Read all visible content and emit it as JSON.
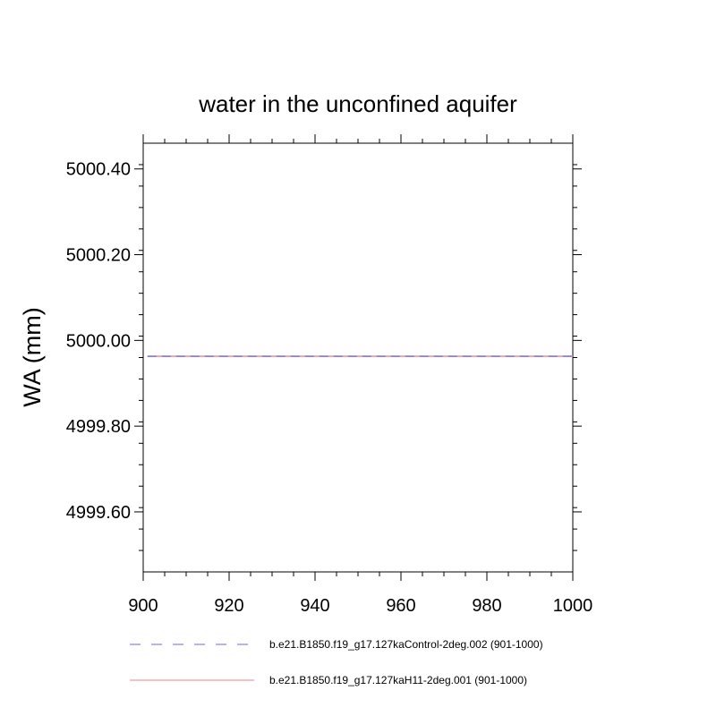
{
  "chart_data": {
    "type": "line",
    "title": "water in the unconfined aquifer",
    "xlabel": "",
    "ylabel": "WA  (mm)",
    "xlim": [
      900,
      1000
    ],
    "ylim": [
      4999.46,
      5000.46
    ],
    "x_ticks": [
      900,
      920,
      940,
      960,
      980,
      1000
    ],
    "x_tick_labels": [
      "900",
      "920",
      "940",
      "960",
      "980",
      "1000"
    ],
    "y_ticks": [
      4999.6,
      4999.8,
      5000.0,
      5000.2,
      5000.4
    ],
    "y_tick_labels": [
      "4999.60",
      "4999.80",
      "5000.00",
      "5000.20",
      "5000.40"
    ],
    "grid": false,
    "legend_position": "bottom",
    "series": [
      {
        "name": "b.e21.B1850.f19_g17.127kaControl-2deg.002 (901-1000)",
        "color": "#6a6af0",
        "style": "dashed",
        "x": [
          901,
          1000
        ],
        "y": [
          4999.963,
          4999.963
        ]
      },
      {
        "name": "b.e21.B1850.f19_g17.127kaH11-2deg.001 (901-1000)",
        "color": "#f08080",
        "style": "solid",
        "x": [
          901,
          1000
        ],
        "y": [
          4999.963,
          4999.963
        ]
      }
    ]
  }
}
